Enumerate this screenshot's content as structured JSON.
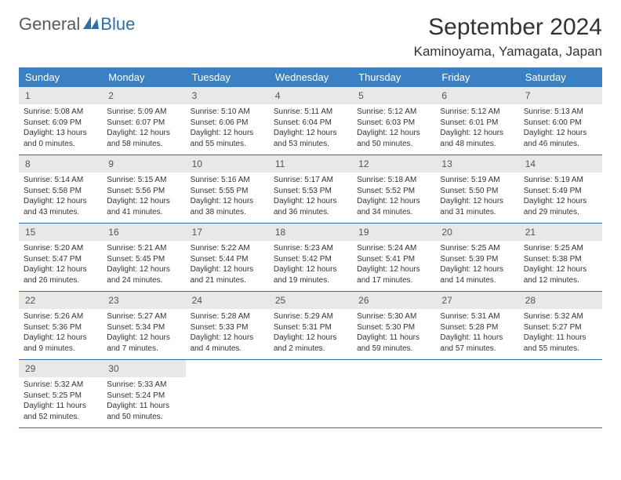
{
  "logo": {
    "general": "General",
    "blue": "Blue"
  },
  "title": "September 2024",
  "location": "Kaminoyama, Yamagata, Japan",
  "colors": {
    "header_bg": "#3a80c2",
    "header_text": "#ffffff",
    "daynum_bg": "#e8e8e8",
    "border": "#2f6fa7",
    "logo_blue": "#2f6fa7",
    "logo_gray": "#5a5a5a"
  },
  "day_headers": [
    "Sunday",
    "Monday",
    "Tuesday",
    "Wednesday",
    "Thursday",
    "Friday",
    "Saturday"
  ],
  "weeks": [
    [
      {
        "n": "1",
        "sunrise": "Sunrise: 5:08 AM",
        "sunset": "Sunset: 6:09 PM",
        "dl1": "Daylight: 13 hours",
        "dl2": "and 0 minutes."
      },
      {
        "n": "2",
        "sunrise": "Sunrise: 5:09 AM",
        "sunset": "Sunset: 6:07 PM",
        "dl1": "Daylight: 12 hours",
        "dl2": "and 58 minutes."
      },
      {
        "n": "3",
        "sunrise": "Sunrise: 5:10 AM",
        "sunset": "Sunset: 6:06 PM",
        "dl1": "Daylight: 12 hours",
        "dl2": "and 55 minutes."
      },
      {
        "n": "4",
        "sunrise": "Sunrise: 5:11 AM",
        "sunset": "Sunset: 6:04 PM",
        "dl1": "Daylight: 12 hours",
        "dl2": "and 53 minutes."
      },
      {
        "n": "5",
        "sunrise": "Sunrise: 5:12 AM",
        "sunset": "Sunset: 6:03 PM",
        "dl1": "Daylight: 12 hours",
        "dl2": "and 50 minutes."
      },
      {
        "n": "6",
        "sunrise": "Sunrise: 5:12 AM",
        "sunset": "Sunset: 6:01 PM",
        "dl1": "Daylight: 12 hours",
        "dl2": "and 48 minutes."
      },
      {
        "n": "7",
        "sunrise": "Sunrise: 5:13 AM",
        "sunset": "Sunset: 6:00 PM",
        "dl1": "Daylight: 12 hours",
        "dl2": "and 46 minutes."
      }
    ],
    [
      {
        "n": "8",
        "sunrise": "Sunrise: 5:14 AM",
        "sunset": "Sunset: 5:58 PM",
        "dl1": "Daylight: 12 hours",
        "dl2": "and 43 minutes."
      },
      {
        "n": "9",
        "sunrise": "Sunrise: 5:15 AM",
        "sunset": "Sunset: 5:56 PM",
        "dl1": "Daylight: 12 hours",
        "dl2": "and 41 minutes."
      },
      {
        "n": "10",
        "sunrise": "Sunrise: 5:16 AM",
        "sunset": "Sunset: 5:55 PM",
        "dl1": "Daylight: 12 hours",
        "dl2": "and 38 minutes."
      },
      {
        "n": "11",
        "sunrise": "Sunrise: 5:17 AM",
        "sunset": "Sunset: 5:53 PM",
        "dl1": "Daylight: 12 hours",
        "dl2": "and 36 minutes."
      },
      {
        "n": "12",
        "sunrise": "Sunrise: 5:18 AM",
        "sunset": "Sunset: 5:52 PM",
        "dl1": "Daylight: 12 hours",
        "dl2": "and 34 minutes."
      },
      {
        "n": "13",
        "sunrise": "Sunrise: 5:19 AM",
        "sunset": "Sunset: 5:50 PM",
        "dl1": "Daylight: 12 hours",
        "dl2": "and 31 minutes."
      },
      {
        "n": "14",
        "sunrise": "Sunrise: 5:19 AM",
        "sunset": "Sunset: 5:49 PM",
        "dl1": "Daylight: 12 hours",
        "dl2": "and 29 minutes."
      }
    ],
    [
      {
        "n": "15",
        "sunrise": "Sunrise: 5:20 AM",
        "sunset": "Sunset: 5:47 PM",
        "dl1": "Daylight: 12 hours",
        "dl2": "and 26 minutes."
      },
      {
        "n": "16",
        "sunrise": "Sunrise: 5:21 AM",
        "sunset": "Sunset: 5:45 PM",
        "dl1": "Daylight: 12 hours",
        "dl2": "and 24 minutes."
      },
      {
        "n": "17",
        "sunrise": "Sunrise: 5:22 AM",
        "sunset": "Sunset: 5:44 PM",
        "dl1": "Daylight: 12 hours",
        "dl2": "and 21 minutes."
      },
      {
        "n": "18",
        "sunrise": "Sunrise: 5:23 AM",
        "sunset": "Sunset: 5:42 PM",
        "dl1": "Daylight: 12 hours",
        "dl2": "and 19 minutes."
      },
      {
        "n": "19",
        "sunrise": "Sunrise: 5:24 AM",
        "sunset": "Sunset: 5:41 PM",
        "dl1": "Daylight: 12 hours",
        "dl2": "and 17 minutes."
      },
      {
        "n": "20",
        "sunrise": "Sunrise: 5:25 AM",
        "sunset": "Sunset: 5:39 PM",
        "dl1": "Daylight: 12 hours",
        "dl2": "and 14 minutes."
      },
      {
        "n": "21",
        "sunrise": "Sunrise: 5:25 AM",
        "sunset": "Sunset: 5:38 PM",
        "dl1": "Daylight: 12 hours",
        "dl2": "and 12 minutes."
      }
    ],
    [
      {
        "n": "22",
        "sunrise": "Sunrise: 5:26 AM",
        "sunset": "Sunset: 5:36 PM",
        "dl1": "Daylight: 12 hours",
        "dl2": "and 9 minutes."
      },
      {
        "n": "23",
        "sunrise": "Sunrise: 5:27 AM",
        "sunset": "Sunset: 5:34 PM",
        "dl1": "Daylight: 12 hours",
        "dl2": "and 7 minutes."
      },
      {
        "n": "24",
        "sunrise": "Sunrise: 5:28 AM",
        "sunset": "Sunset: 5:33 PM",
        "dl1": "Daylight: 12 hours",
        "dl2": "and 4 minutes."
      },
      {
        "n": "25",
        "sunrise": "Sunrise: 5:29 AM",
        "sunset": "Sunset: 5:31 PM",
        "dl1": "Daylight: 12 hours",
        "dl2": "and 2 minutes."
      },
      {
        "n": "26",
        "sunrise": "Sunrise: 5:30 AM",
        "sunset": "Sunset: 5:30 PM",
        "dl1": "Daylight: 11 hours",
        "dl2": "and 59 minutes."
      },
      {
        "n": "27",
        "sunrise": "Sunrise: 5:31 AM",
        "sunset": "Sunset: 5:28 PM",
        "dl1": "Daylight: 11 hours",
        "dl2": "and 57 minutes."
      },
      {
        "n": "28",
        "sunrise": "Sunrise: 5:32 AM",
        "sunset": "Sunset: 5:27 PM",
        "dl1": "Daylight: 11 hours",
        "dl2": "and 55 minutes."
      }
    ],
    [
      {
        "n": "29",
        "sunrise": "Sunrise: 5:32 AM",
        "sunset": "Sunset: 5:25 PM",
        "dl1": "Daylight: 11 hours",
        "dl2": "and 52 minutes."
      },
      {
        "n": "30",
        "sunrise": "Sunrise: 5:33 AM",
        "sunset": "Sunset: 5:24 PM",
        "dl1": "Daylight: 11 hours",
        "dl2": "and 50 minutes."
      },
      {
        "empty": true
      },
      {
        "empty": true
      },
      {
        "empty": true
      },
      {
        "empty": true
      },
      {
        "empty": true
      }
    ]
  ]
}
